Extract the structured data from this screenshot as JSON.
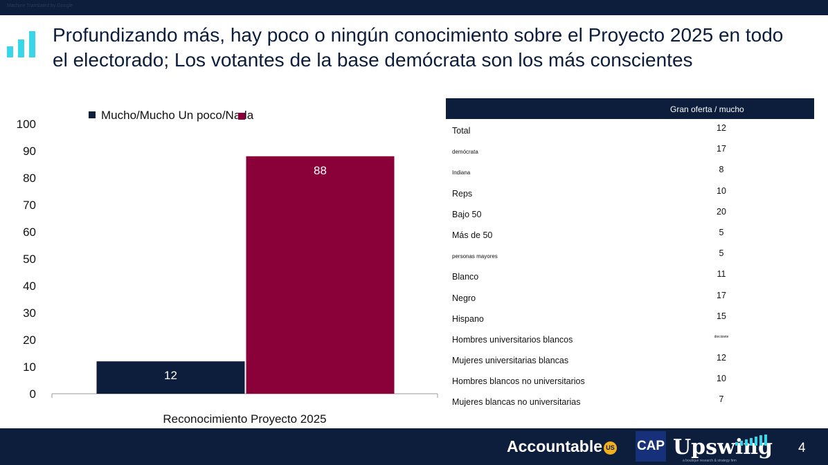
{
  "header": {
    "banner_text": "Machine Translated by Google",
    "title": "Profundizando más, hay poco o ningún conocimiento sobre el Proyecto 2025 en todo el electorado; Los votantes de la base demócrata son los más conscientes"
  },
  "chart_data": {
    "type": "bar",
    "categories": [
      "Reconocimiento Proyecto 2025"
    ],
    "series": [
      {
        "name": "Mucho/Mucho",
        "values": [
          12
        ],
        "color": "#0c1e3c"
      },
      {
        "name": "Un poco/Nada",
        "values": [
          88
        ],
        "color": "#8a0038"
      }
    ],
    "xlabel": "Reconocimiento Proyecto 2025",
    "ylabel": "",
    "ylim": [
      0,
      100
    ],
    "yticks": [
      0,
      10,
      20,
      30,
      40,
      50,
      60,
      70,
      80,
      90,
      100
    ],
    "legend_text": "Mucho/Mucho Un poco/Nada",
    "legend_position": "top-left",
    "grid": false
  },
  "table": {
    "header": "Gran oferta / mucho",
    "rows": [
      {
        "label": "Total",
        "value": "12"
      },
      {
        "label": "demócrata",
        "value": "17"
      },
      {
        "label": "Indiana",
        "value": "8"
      },
      {
        "label": "Reps",
        "value": "10"
      },
      {
        "label": "Bajo 50",
        "value": "20"
      },
      {
        "label": "Más de 50",
        "value": "5"
      },
      {
        "label": "personas mayores",
        "value": "5"
      },
      {
        "label": "Blanco",
        "value": "11"
      },
      {
        "label": "Negro",
        "value": "17"
      },
      {
        "label": "Hispano",
        "value": "15"
      },
      {
        "label": "Hombres universitarios blancos",
        "value": "diecisiete"
      },
      {
        "label": "Mujeres universitarias blancas",
        "value": "12"
      },
      {
        "label": "Hombres blancos no universitarios",
        "value": "10"
      },
      {
        "label": "Mujeres blancas no universitarias",
        "value": "7"
      }
    ]
  },
  "footer": {
    "logo_accountable": "Accountable",
    "logo_accountable_badge": "US",
    "logo_cap": "CAP",
    "logo_upswing": "Upswing",
    "logo_upswing_tagline": "a boutique research & strategy firm",
    "page_number": "4"
  },
  "colors": {
    "navy": "#0c1e3c",
    "maroon": "#8a0038",
    "cyan": "#37d6e8"
  },
  "icons": {
    "slide_icon": "bar-chart-icon"
  }
}
